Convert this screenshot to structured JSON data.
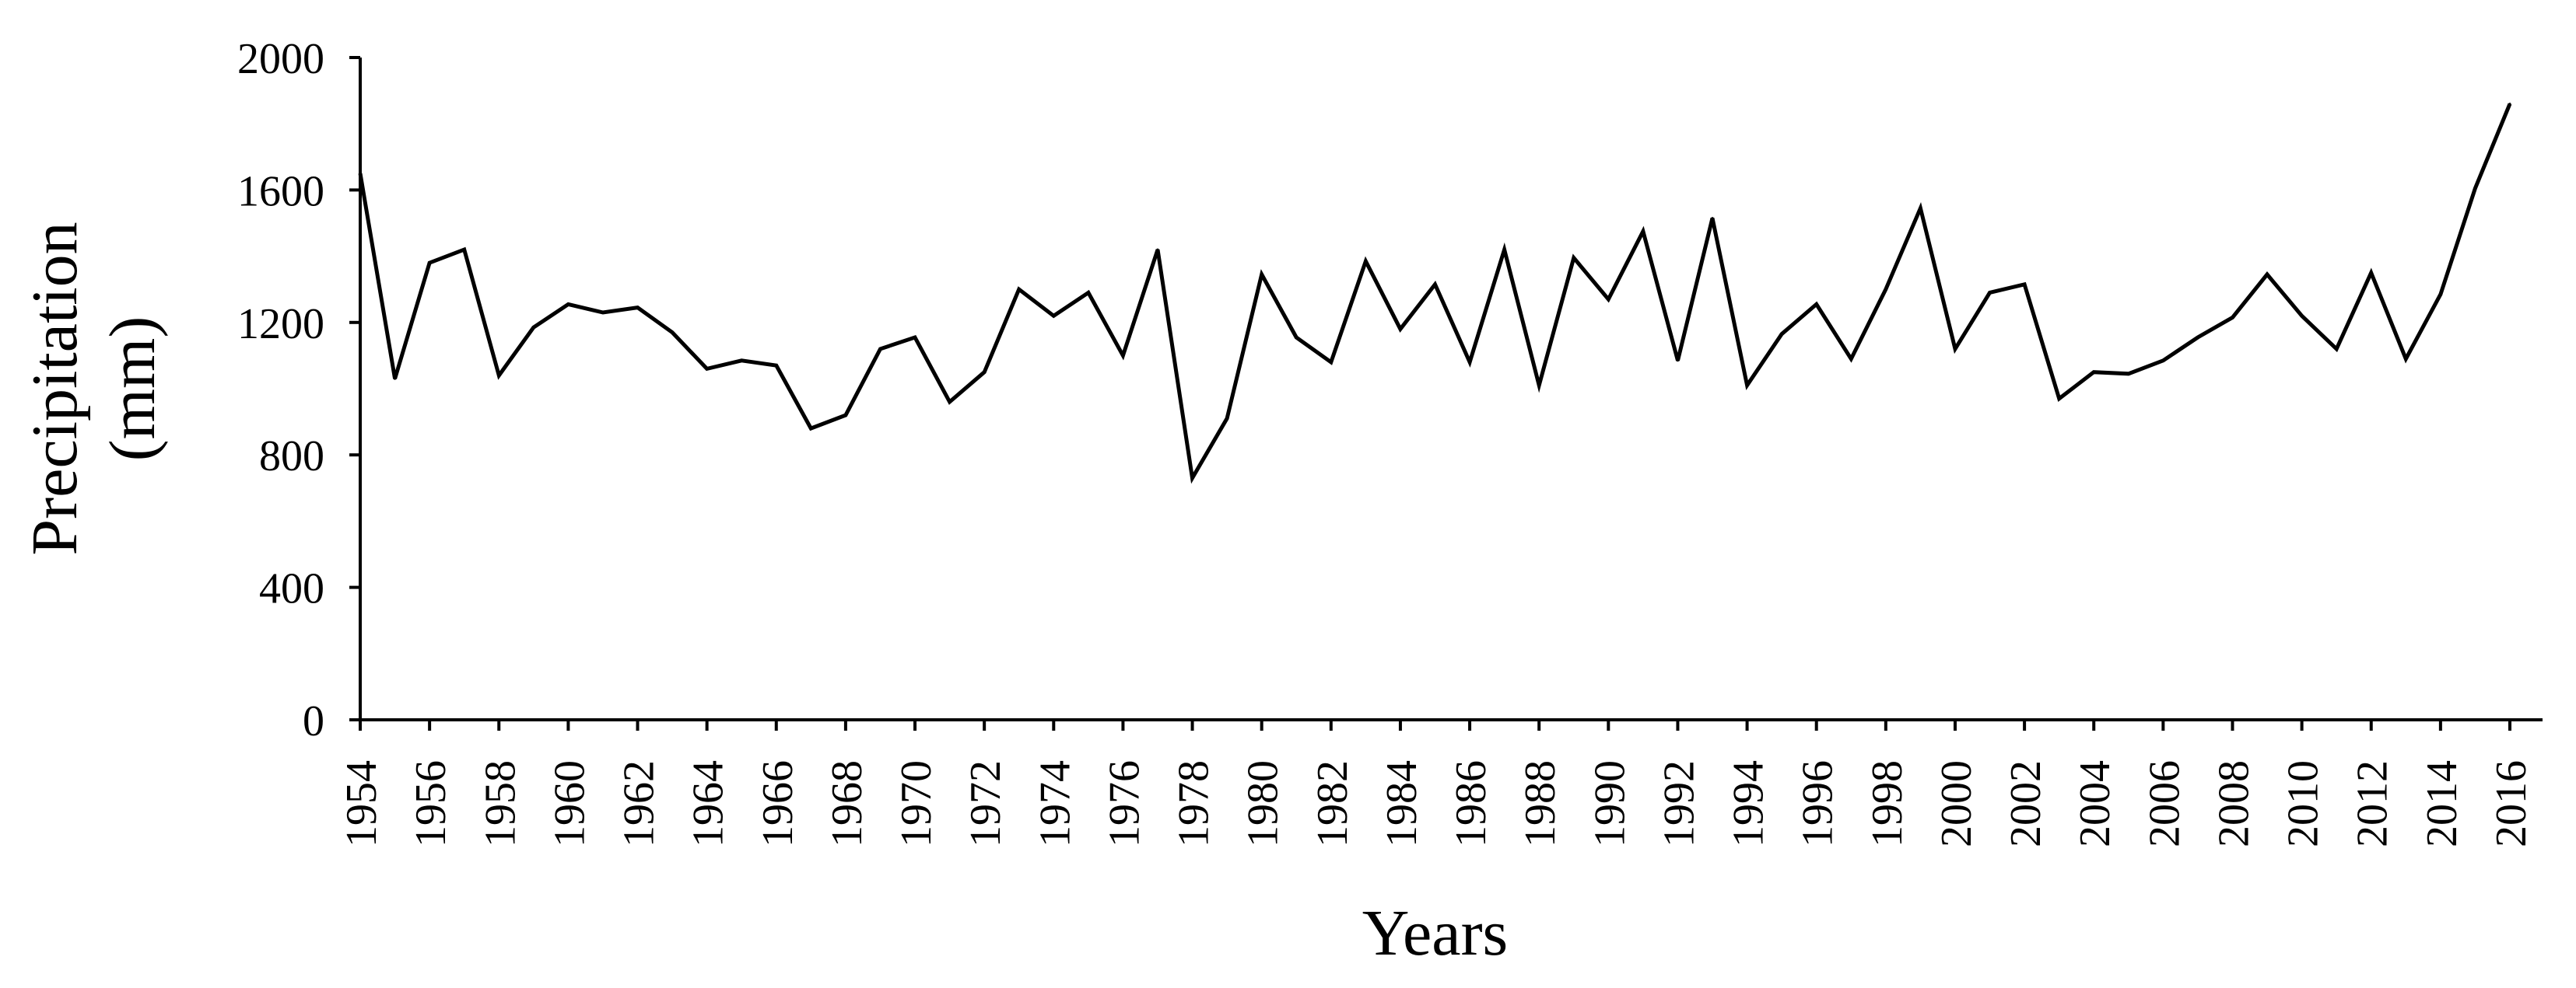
{
  "chart_data": {
    "type": "line",
    "title": "",
    "xlabel": "Years",
    "ylabel_lines": [
      "Precipitation",
      "(mm)"
    ],
    "ylim": [
      0,
      2000
    ],
    "yticks": [
      0,
      400,
      800,
      1200,
      1600,
      2000
    ],
    "xlim": [
      1954,
      2016
    ],
    "xticks": [
      1954,
      1956,
      1958,
      1960,
      1962,
      1964,
      1966,
      1968,
      1970,
      1972,
      1974,
      1976,
      1978,
      1980,
      1982,
      1984,
      1986,
      1988,
      1990,
      1992,
      1994,
      1996,
      1998,
      2000,
      2002,
      2004,
      2006,
      2008,
      2010,
      2012,
      2014,
      2016
    ],
    "grid": false,
    "line_color": "#000000",
    "series": [
      {
        "x": [
          1954,
          1955,
          1956,
          1957,
          1958,
          1959,
          1960,
          1961,
          1962,
          1963,
          1964,
          1965,
          1966,
          1967,
          1968,
          1969,
          1970,
          1971,
          1972,
          1973,
          1974,
          1975,
          1976,
          1977,
          1978,
          1979,
          1980,
          1981,
          1982,
          1983,
          1984,
          1985,
          1986,
          1987,
          1988,
          1989,
          1990,
          1991,
          1992,
          1993,
          1994,
          1995,
          1996,
          1997,
          1998,
          1999,
          2000,
          2001,
          2002,
          2003,
          2004,
          2005,
          2006,
          2007,
          2008,
          2009,
          2010,
          2011,
          2012,
          2013,
          2014,
          2015,
          2016
        ],
        "values": [
          1650,
          1030,
          1380,
          1420,
          1040,
          1185,
          1255,
          1230,
          1245,
          1170,
          1060,
          1085,
          1070,
          880,
          920,
          1120,
          1155,
          960,
          1050,
          1300,
          1220,
          1290,
          1100,
          1420,
          730,
          910,
          1345,
          1155,
          1080,
          1385,
          1180,
          1315,
          1080,
          1420,
          1010,
          1395,
          1270,
          1475,
          1085,
          1515,
          1010,
          1165,
          1255,
          1090,
          1300,
          1545,
          1120,
          1290,
          1315,
          970,
          1050,
          1045,
          1085,
          1155,
          1215,
          1345,
          1220,
          1120,
          1350,
          1090,
          1285,
          1605,
          1860
        ]
      }
    ]
  }
}
